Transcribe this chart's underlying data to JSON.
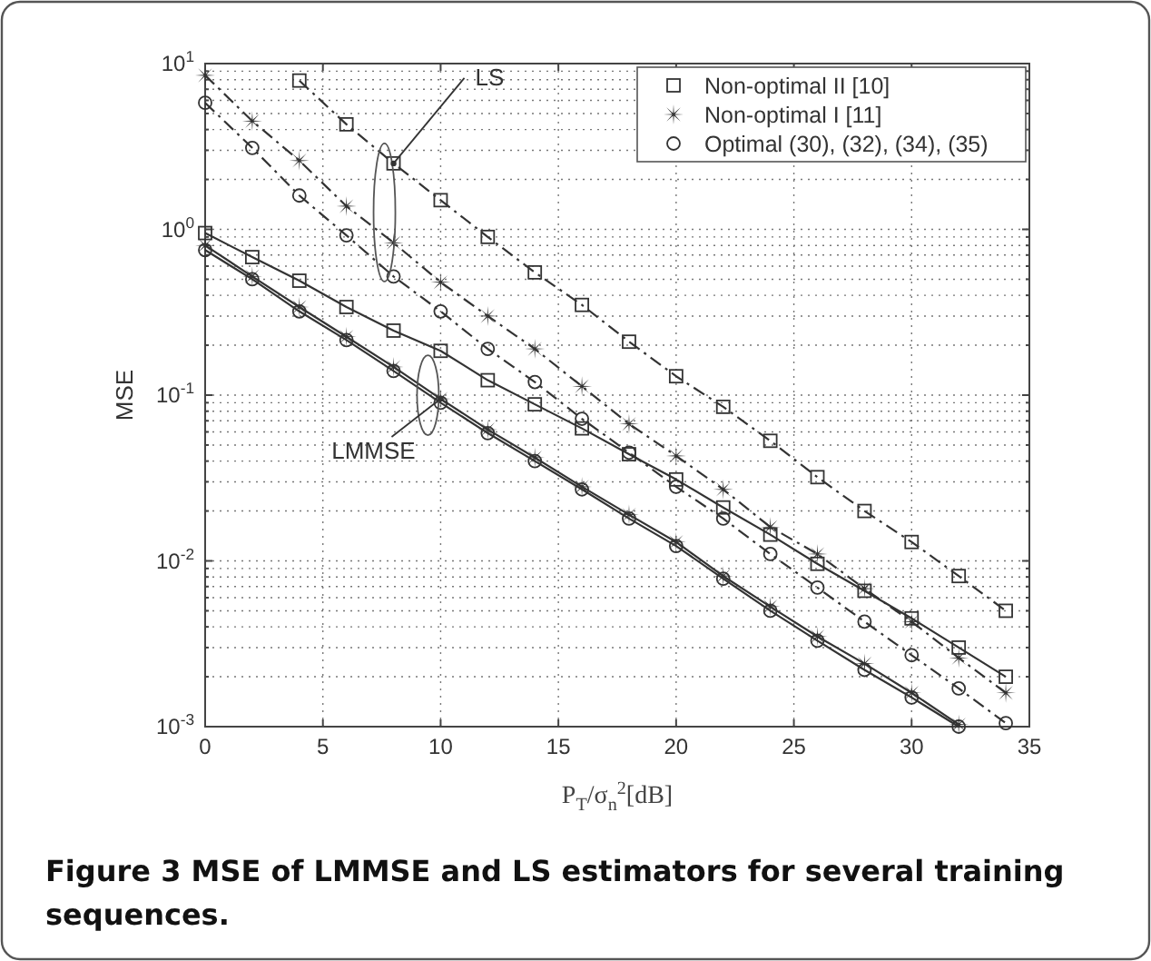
{
  "chart_data": {
    "type": "line",
    "xlabel": "P$_{T}$/σ$_{n}$$^{2}$[dB]",
    "ylabel": "MSE",
    "log": "y",
    "grid": true,
    "legend": "top right",
    "xlim": [
      0,
      35
    ],
    "xticks": [
      0,
      5,
      10,
      15,
      20,
      25,
      30,
      35
    ],
    "ylim": [
      0.001,
      10
    ],
    "yticks": [
      {
        "value": 0.001,
        "label": "10$^{-3}$"
      },
      {
        "value": 0.002,
        "label": null
      },
      {
        "value": 0.003,
        "label": null
      },
      {
        "value": 0.004,
        "label": null
      },
      {
        "value": 0.005,
        "label": null
      },
      {
        "value": 0.006,
        "label": null
      },
      {
        "value": 0.007,
        "label": null
      },
      {
        "value": 0.008,
        "label": null
      },
      {
        "value": 0.009,
        "label": null
      },
      {
        "value": 0.01,
        "label": "10$^{-2}$"
      },
      {
        "value": 0.02,
        "label": null
      },
      {
        "value": 0.03,
        "label": null
      },
      {
        "value": 0.04,
        "label": null
      },
      {
        "value": 0.05,
        "label": null
      },
      {
        "value": 0.06,
        "label": null
      },
      {
        "value": 0.07,
        "label": null
      },
      {
        "value": 0.08,
        "label": null
      },
      {
        "value": 0.09,
        "label": null
      },
      {
        "value": 0.1,
        "label": "10$^{-1}$"
      },
      {
        "value": 0.2,
        "label": null
      },
      {
        "value": 0.3,
        "label": null
      },
      {
        "value": 0.4,
        "label": null
      },
      {
        "value": 0.5,
        "label": null
      },
      {
        "value": 0.6,
        "label": null
      },
      {
        "value": 0.7,
        "label": null
      },
      {
        "value": 0.8,
        "label": null
      },
      {
        "value": 0.9,
        "label": null
      },
      {
        "value": 1,
        "label": "10$^{0}$"
      },
      {
        "value": 2,
        "label": null
      },
      {
        "value": 3,
        "label": null
      },
      {
        "value": 4,
        "label": null
      },
      {
        "value": 5,
        "label": null
      },
      {
        "value": 6,
        "label": null
      },
      {
        "value": 7,
        "label": null
      },
      {
        "value": 8,
        "label": null
      },
      {
        "value": 9,
        "label": null
      },
      {
        "value": 10,
        "label": "10$^{1}$"
      }
    ],
    "series": [
      {
        "name": "Non-optimal II [10]",
        "color": "#333333",
        "marker": "square",
        "line_style": "dashed",
        "x": [
          4,
          6,
          8,
          10,
          12,
          14,
          16,
          18,
          20,
          22,
          24,
          26,
          28,
          30,
          32,
          34
        ],
        "values": [
          7.9,
          4.3,
          2.5,
          1.5,
          0.9,
          0.55,
          0.35,
          0.21,
          0.13,
          0.085,
          0.053,
          0.032,
          0.02,
          0.013,
          0.0081,
          0.005
        ]
      },
      {
        "name": "Non-optimal I [11]",
        "color": "#333333",
        "marker": "star",
        "line_style": "dashed",
        "x": [
          0,
          2,
          4,
          6,
          8,
          10,
          12,
          14,
          16,
          18,
          20,
          22,
          24,
          26,
          28,
          30,
          32,
          34
        ],
        "values": [
          8.5,
          4.5,
          2.6,
          1.38,
          0.83,
          0.48,
          0.3,
          0.19,
          0.113,
          0.067,
          0.043,
          0.027,
          0.016,
          0.011,
          0.0068,
          0.0043,
          0.0026,
          0.0016
        ]
      },
      {
        "name": "Optimal (30), (32), (34), (35)",
        "color": "#333333",
        "marker": "circle",
        "line_style": "dashed",
        "x": [
          0,
          2,
          4,
          6,
          8,
          10,
          12,
          14,
          16,
          18,
          20,
          22,
          24,
          26,
          28,
          30,
          32,
          34
        ],
        "values": [
          5.8,
          3.1,
          1.6,
          0.92,
          0.52,
          0.32,
          0.19,
          0.12,
          0.072,
          0.045,
          0.028,
          0.018,
          0.011,
          0.0069,
          0.0043,
          0.0027,
          0.0017,
          0.00105
        ]
      },
      {
        "color": "#333333",
        "marker": "square",
        "line_style": "solid",
        "x": [
          0,
          2,
          4,
          6,
          8,
          10,
          12,
          14,
          16,
          18,
          20,
          22,
          24,
          26,
          28,
          30,
          32,
          34
        ],
        "values": [
          0.95,
          0.68,
          0.49,
          0.34,
          0.245,
          0.185,
          0.123,
          0.088,
          0.063,
          0.044,
          0.031,
          0.021,
          0.0144,
          0.0096,
          0.0066,
          0.0045,
          0.003,
          0.002
        ]
      },
      {
        "color": "#333333",
        "marker": "star",
        "line_style": "solid",
        "x": [
          0,
          2,
          4,
          6,
          8,
          10,
          12,
          14,
          16,
          18,
          20,
          22,
          24,
          26,
          28,
          30,
          32
        ],
        "values": [
          0.8,
          0.52,
          0.34,
          0.225,
          0.148,
          0.095,
          0.062,
          0.042,
          0.028,
          0.019,
          0.013,
          0.0081,
          0.0053,
          0.0035,
          0.0024,
          0.0016,
          0.00103
        ]
      },
      {
        "color": "#333333",
        "marker": "circle",
        "line_style": "solid",
        "x": [
          0,
          2,
          4,
          6,
          8,
          10,
          12,
          14,
          16,
          18,
          20,
          22,
          24,
          26,
          28,
          30,
          32
        ],
        "values": [
          0.75,
          0.5,
          0.32,
          0.215,
          0.14,
          0.09,
          0.059,
          0.04,
          0.027,
          0.018,
          0.0123,
          0.0078,
          0.005,
          0.0033,
          0.0022,
          0.0015,
          0.001
        ]
      }
    ],
    "annotations": [
      {
        "text": "LS",
        "x": 8,
        "y": 2.5
      },
      {
        "text": "LMMSE",
        "x": 10,
        "y": 0.095
      },
      "Figure 3 MSE of LMMSE and LS estimators for several training sequences."
    ]
  }
}
